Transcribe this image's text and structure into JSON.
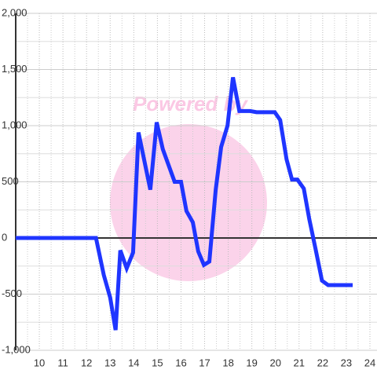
{
  "chart_data": {
    "type": "line",
    "watermark": "Powered by",
    "x": [
      9.0,
      12.4,
      12.73,
      13.0,
      13.23,
      13.43,
      13.7,
      13.97,
      14.2,
      14.7,
      14.97,
      15.23,
      15.73,
      16.0,
      16.23,
      16.5,
      16.73,
      16.97,
      17.2,
      17.47,
      17.7,
      17.97,
      18.2,
      18.47,
      18.93,
      19.2,
      19.97,
      20.2,
      20.47,
      20.7,
      20.93,
      21.2,
      21.43,
      21.7,
      21.97,
      22.23,
      23.27
    ],
    "series": [
      {
        "color": "#1f35ff",
        "values": [
          0,
          0,
          -330,
          -530,
          -820,
          -110,
          -270,
          -130,
          940,
          430,
          1030,
          790,
          500,
          500,
          240,
          140,
          -120,
          -240,
          -210,
          430,
          810,
          1000,
          1430,
          1130,
          1130,
          1120,
          1120,
          1050,
          700,
          520,
          520,
          440,
          170,
          -100,
          -380,
          -420,
          -420
        ]
      }
    ],
    "xlim": [
      9,
      24.3
    ],
    "xticks": [
      10,
      11,
      12,
      13,
      14,
      15,
      16,
      17,
      18,
      19,
      20,
      21,
      22,
      23,
      24
    ],
    "x_minor_ticks": [
      9.5,
      10.5,
      11.5,
      12.5,
      13.5,
      14.5,
      15.5,
      16.5,
      17.5,
      18.5,
      19.5,
      20.5,
      21.5,
      22.5,
      23.5
    ],
    "ylim": [
      -1000,
      2000
    ],
    "yticks": [
      {
        "value": -1000,
        "label": "-1,000"
      },
      -500,
      0,
      500,
      {
        "value": 1000,
        "label": "1,000"
      },
      {
        "value": 1500,
        "label": "1,500"
      },
      {
        "value": 2000,
        "label": "2,000"
      }
    ],
    "y_minor_ticks": [
      -750,
      -250,
      250,
      750,
      1250,
      1750
    ],
    "grid": true
  }
}
